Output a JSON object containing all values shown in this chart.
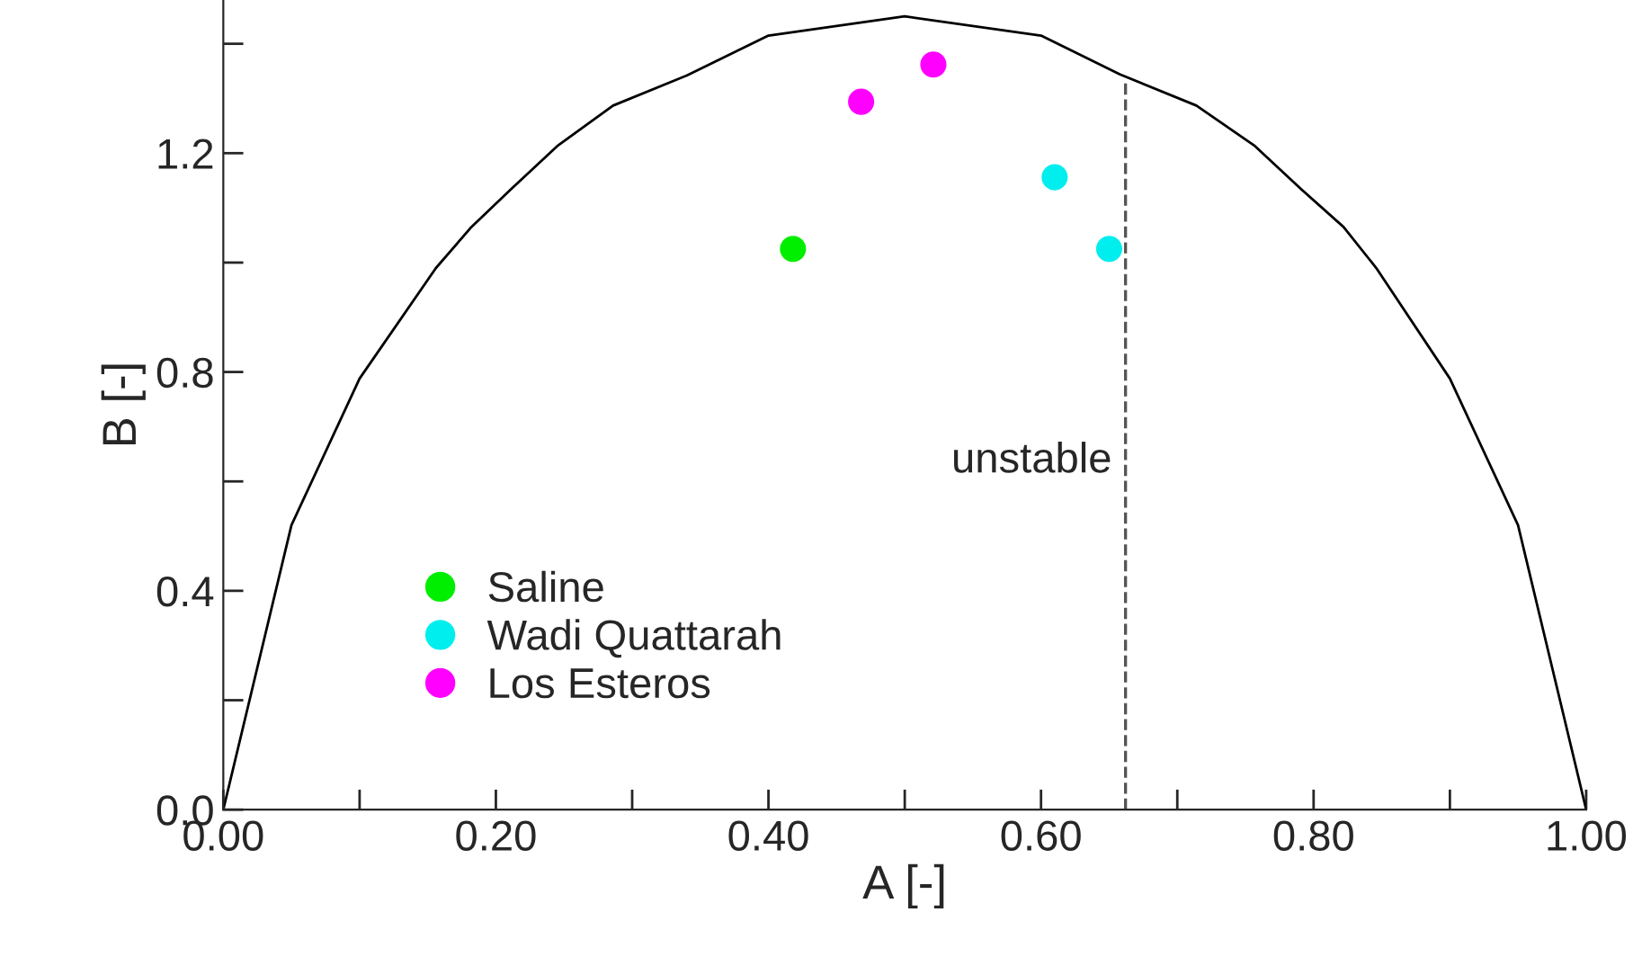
{
  "chart_data": {
    "type": "scatter",
    "xlabel": "A [-]",
    "ylabel": "B [-]",
    "xlim": [
      0,
      1
    ],
    "ylim": [
      0,
      1.48
    ],
    "xticks": [
      {
        "value": 0,
        "label": "0.00"
      },
      {
        "value": 0.1,
        "label": null
      },
      {
        "value": 0.2,
        "label": "0.20"
      },
      {
        "value": 0.3,
        "label": null
      },
      {
        "value": 0.4,
        "label": "0.40"
      },
      {
        "value": 0.5,
        "label": null
      },
      {
        "value": 0.6,
        "label": "0.60"
      },
      {
        "value": 0.7,
        "label": null
      },
      {
        "value": 0.8,
        "label": "0.80"
      },
      {
        "value": 0.9,
        "label": null
      },
      {
        "value": 1,
        "label": "1.00"
      }
    ],
    "yticks": [
      {
        "value": 0,
        "label": "0.0"
      },
      {
        "value": 0.2,
        "label": null
      },
      {
        "value": 0.4,
        "label": "0.4"
      },
      {
        "value": 0.6,
        "label": null
      },
      {
        "value": 0.8,
        "label": "0.8"
      },
      {
        "value": 1.0,
        "label": null
      },
      {
        "value": 1.2,
        "label": "1.2"
      },
      {
        "value": 1.4,
        "label": null
      }
    ],
    "grid": false,
    "legend": "bottom left",
    "marker": "circle",
    "ref_lines": [
      {
        "axis": "x",
        "value": 0.662,
        "label": "unstable",
        "color": "#555555",
        "line_style": "dashed"
      }
    ],
    "series": [
      {
        "type": "line",
        "color": "#000000",
        "marker": "none",
        "x": [
          0,
          0.05,
          0.1,
          0.156,
          0.182,
          0.211,
          0.245,
          0.286,
          0.34,
          0.4,
          0.5,
          0.6,
          0.658,
          0.714,
          0.757,
          0.791,
          0.822,
          0.846,
          0.9,
          0.95,
          1.0
        ],
        "values": [
          0,
          0.52,
          0.788,
          0.99,
          1.065,
          1.134,
          1.213,
          1.287,
          1.342,
          1.415,
          1.45,
          1.415,
          1.344,
          1.287,
          1.213,
          1.134,
          1.065,
          0.99,
          0.788,
          0.52,
          0
        ]
      },
      {
        "name": "Saline",
        "color": "#00ee00",
        "x": [
          0.418
        ],
        "values": [
          1.025
        ]
      },
      {
        "name": "Wadi Quattarah",
        "color": "#00eeee",
        "x": [
          0.61,
          0.65
        ],
        "values": [
          1.156,
          1.025
        ]
      },
      {
        "name": "Los Esteros",
        "color": "#ff00ff",
        "x": [
          0.468,
          0.521
        ],
        "values": [
          1.294,
          1.362
        ]
      }
    ]
  }
}
